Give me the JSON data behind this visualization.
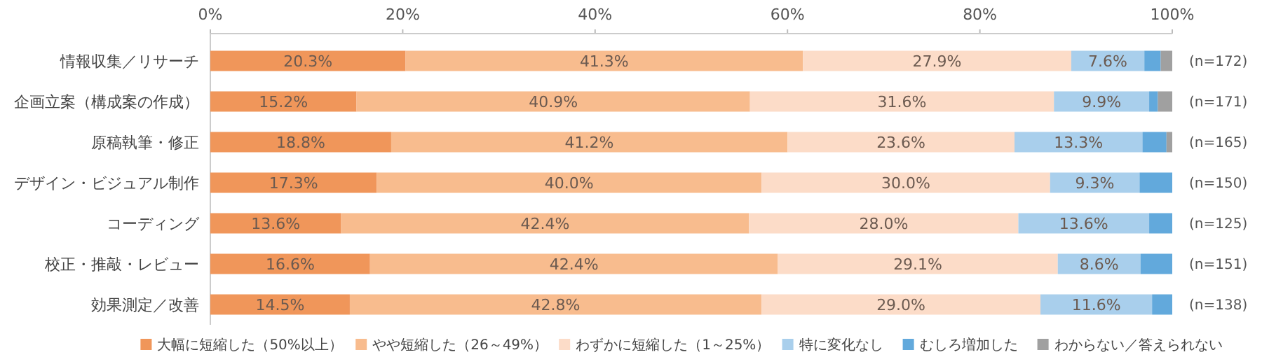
{
  "chart_data": {
    "type": "bar",
    "orientation": "horizontal",
    "stacked": true,
    "categories": [
      "情報収集／リサーチ",
      "企画立案（構成案の作成）",
      "原稿執筆・修正",
      "デザイン・ビジュアル制作",
      "コーディング",
      "校正・推敲・レビュー",
      "効果測定／改善"
    ],
    "series": [
      {
        "name": "大幅に短縮した（50%以上）",
        "color": "#f0965a",
        "values": [
          20.3,
          15.2,
          18.8,
          17.3,
          13.6,
          16.6,
          14.5
        ],
        "value_labels": [
          "20.3%",
          "15.2%",
          "18.8%",
          "17.3%",
          "13.6%",
          "16.6%",
          "14.5%"
        ]
      },
      {
        "name": "やや短縮した（26～49%）",
        "color": "#f8bc8e",
        "values": [
          41.3,
          40.9,
          41.2,
          40.0,
          42.4,
          42.4,
          42.8
        ],
        "value_labels": [
          "41.3%",
          "40.9%",
          "41.2%",
          "40.0%",
          "42.4%",
          "42.4%",
          "42.8%"
        ]
      },
      {
        "name": "わずかに短縮した（1～25%）",
        "color": "#fcdcc8",
        "values": [
          27.9,
          31.6,
          23.6,
          30.0,
          28.0,
          29.1,
          29.0
        ],
        "value_labels": [
          "27.9%",
          "31.6%",
          "23.6%",
          "30.0%",
          "28.0%",
          "29.1%",
          "29.0%"
        ]
      },
      {
        "name": "特に変化なし",
        "color": "#a9cfec",
        "values": [
          7.6,
          9.9,
          13.3,
          9.3,
          13.6,
          8.6,
          11.6
        ],
        "value_labels": [
          "7.6%",
          "9.9%",
          "13.3%",
          "9.3%",
          "13.6%",
          "8.6%",
          "11.6%"
        ]
      },
      {
        "name": "むしろ増加した",
        "color": "#62a9dc",
        "values": [
          1.7,
          0.9,
          2.5,
          3.4,
          2.4,
          3.3,
          2.1
        ]
      },
      {
        "name": "わからない／答えられない",
        "color": "#a0a0a0",
        "values": [
          1.2,
          1.5,
          0.6,
          null,
          null,
          null,
          null
        ]
      }
    ],
    "xlim": [
      0,
      100
    ],
    "xticks": [
      {
        "value": 0,
        "label": "0%"
      },
      {
        "value": 20,
        "label": "20%"
      },
      {
        "value": 40,
        "label": "40%"
      },
      {
        "value": 60,
        "label": "60%"
      },
      {
        "value": 80,
        "label": "80%"
      },
      {
        "value": 100,
        "label": "100%"
      }
    ],
    "annotations": [
      "(n=172)",
      "(n=171)",
      "(n=165)",
      "(n=150)",
      "(n=125)",
      "(n=151)",
      "(n=138)"
    ],
    "legend": "bottom"
  }
}
